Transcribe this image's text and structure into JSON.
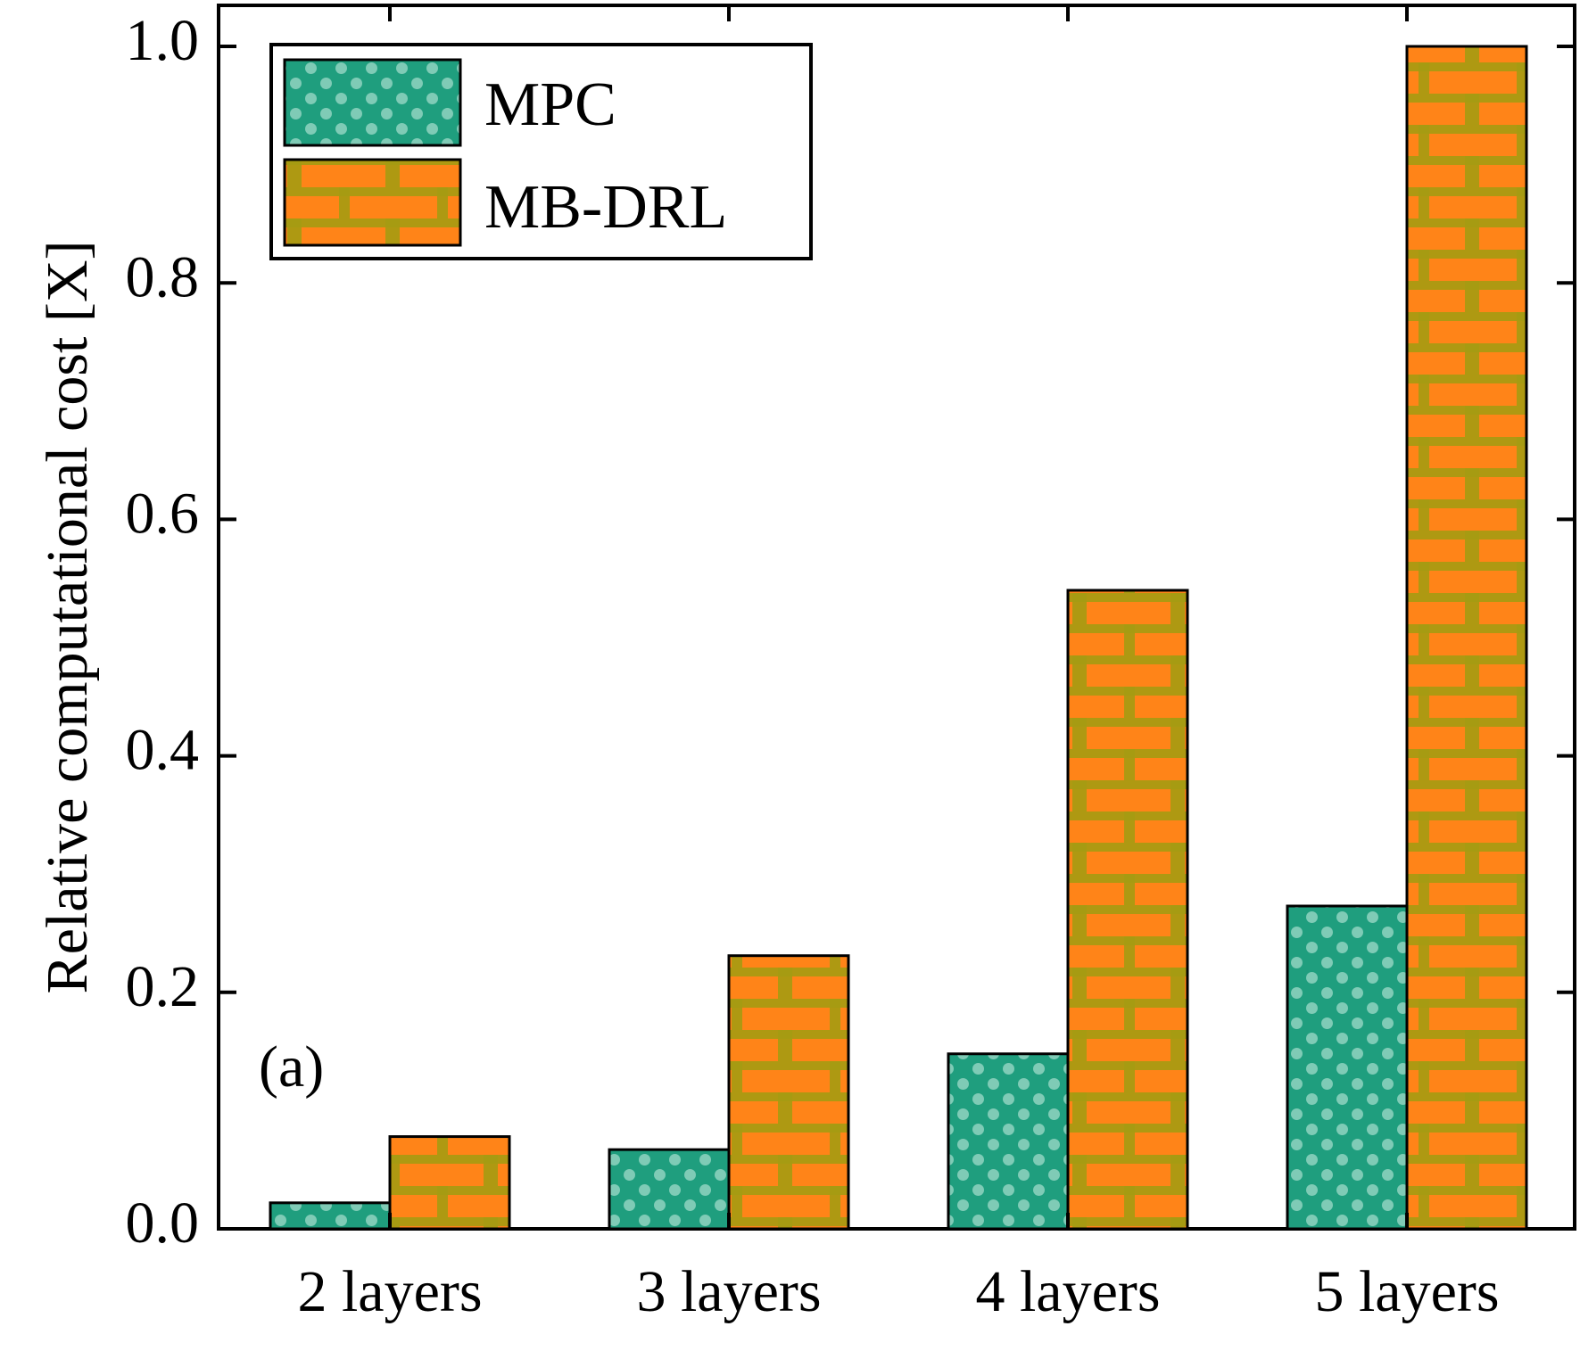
{
  "colors": {
    "mpc_base": "#1f9e7e",
    "mpc_dot": "#8fd3c0",
    "drl_base": "#ff8418",
    "drl_mortar": "#a59c12",
    "axis": "#000000"
  },
  "panel_label": "(a)",
  "chart_data": {
    "type": "bar",
    "title": "",
    "xlabel": "",
    "ylabel": "Relative computational cost [X]",
    "ylim": [
      0,
      1.0
    ],
    "yticks": [
      0.0,
      0.2,
      0.4,
      0.6,
      0.8,
      1.0
    ],
    "ytick_labels": [
      "0.0",
      "0.2",
      "0.4",
      "0.6",
      "0.8",
      "1.0"
    ],
    "categories": [
      "2 layers",
      "3 layers",
      "4 layers",
      "5 layers"
    ],
    "series": [
      {
        "name": "MPC",
        "values": [
          0.022,
          0.067,
          0.148,
          0.273
        ],
        "pattern": "dots"
      },
      {
        "name": "MB-DRL",
        "values": [
          0.078,
          0.231,
          0.54,
          1.0
        ],
        "pattern": "bricks"
      }
    ],
    "legend": {
      "position": "top-left"
    },
    "grid": false
  }
}
